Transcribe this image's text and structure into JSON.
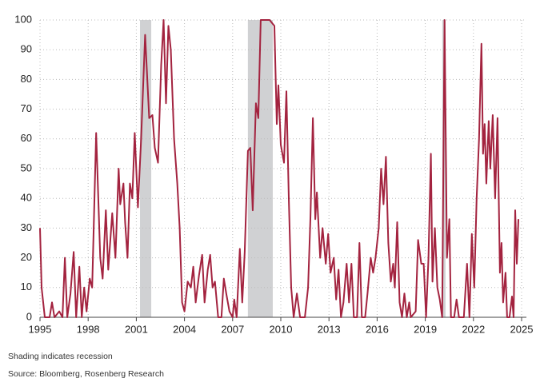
{
  "chart_data": {
    "type": "line",
    "note": "Shading indicates recession",
    "source": "Source: Bloomberg, Rosenberg Research",
    "color": "#a3233f",
    "recession_color": "#d0d1d3",
    "grid": true,
    "xlim": [
      1995,
      2025.3
    ],
    "ylim": [
      0,
      100
    ],
    "xticks": [
      1995,
      1998,
      2001,
      2004,
      2007,
      2010,
      2013,
      2016,
      2019,
      2022,
      2025
    ],
    "yticks": [
      0,
      10,
      20,
      30,
      40,
      50,
      60,
      70,
      80,
      90,
      100
    ],
    "recessions": [
      [
        2001.23,
        2001.93
      ],
      [
        2007.95,
        2009.5
      ],
      [
        2020.06,
        2020.26
      ]
    ],
    "x": [
      1995.0,
      1995.1,
      1995.3,
      1995.6,
      1995.75,
      1995.9,
      1996.2,
      1996.4,
      1996.55,
      1996.7,
      1996.9,
      1997.1,
      1997.25,
      1997.45,
      1997.6,
      1997.75,
      1997.9,
      1998.1,
      1998.25,
      1998.5,
      1998.75,
      1998.9,
      1999.1,
      1999.25,
      1999.5,
      1999.7,
      1999.9,
      2000.0,
      2000.2,
      2000.3,
      2000.45,
      2000.6,
      2000.75,
      2000.9,
      2001.1,
      2001.3,
      2001.55,
      2001.8,
      2002.0,
      2002.15,
      2002.35,
      2002.55,
      2002.7,
      2002.85,
      2003.0,
      2003.15,
      2003.35,
      2003.55,
      2003.7,
      2003.85,
      2004.0,
      2004.2,
      2004.4,
      2004.55,
      2004.7,
      2004.9,
      2005.1,
      2005.25,
      2005.45,
      2005.6,
      2005.75,
      2005.9,
      2006.1,
      2006.3,
      2006.45,
      2006.6,
      2006.8,
      2007.0,
      2007.1,
      2007.25,
      2007.45,
      2007.6,
      2007.75,
      2007.95,
      2008.1,
      2008.25,
      2008.45,
      2008.6,
      2008.75,
      2009.0,
      2009.3,
      2009.6,
      2009.75,
      2009.85,
      2010.0,
      2010.2,
      2010.35,
      2010.5,
      2010.65,
      2010.8,
      2011.0,
      2011.2,
      2011.5,
      2011.7,
      2011.85,
      2012.0,
      2012.15,
      2012.25,
      2012.45,
      2012.6,
      2012.8,
      2012.95,
      2013.1,
      2013.3,
      2013.45,
      2013.6,
      2013.75,
      2013.9,
      2014.1,
      2014.25,
      2014.4,
      2014.55,
      2014.75,
      2014.9,
      2015.05,
      2015.25,
      2015.4,
      2015.6,
      2015.75,
      2015.9,
      2016.1,
      2016.25,
      2016.4,
      2016.55,
      2016.7,
      2016.85,
      2017.0,
      2017.1,
      2017.25,
      2017.4,
      2017.55,
      2017.7,
      2017.85,
      2018.0,
      2018.1,
      2018.4,
      2018.55,
      2018.75,
      2018.9,
      2019.05,
      2019.2,
      2019.35,
      2019.45,
      2019.6,
      2019.75,
      2019.9,
      2020.05,
      2020.2,
      2020.35,
      2020.5,
      2020.6,
      2020.8,
      2020.95,
      2021.1,
      2021.4,
      2021.6,
      2021.75,
      2021.9,
      2022.05,
      2022.2,
      2022.35,
      2022.5,
      2022.6,
      2022.7,
      2022.8,
      2022.95,
      2023.05,
      2023.2,
      2023.35,
      2023.5,
      2023.65,
      2023.75,
      2023.85,
      2024.0,
      2024.1,
      2024.25,
      2024.4,
      2024.5,
      2024.6,
      2024.7,
      2024.8
    ],
    "values": [
      30,
      10,
      0,
      0,
      5,
      0,
      2,
      0,
      20,
      0,
      8,
      22,
      0,
      17,
      0,
      10,
      2,
      13,
      10,
      62,
      20,
      13,
      36,
      16,
      35,
      20,
      50,
      38,
      45,
      32,
      20,
      45,
      40,
      62,
      37,
      60,
      95,
      67,
      68,
      57,
      52,
      85,
      100,
      72,
      98,
      90,
      60,
      45,
      30,
      5,
      2,
      12,
      10,
      17,
      5,
      14,
      21,
      5,
      16,
      21,
      10,
      12,
      0,
      0,
      13,
      8,
      2,
      0,
      6,
      0,
      23,
      5,
      22,
      56,
      57,
      36,
      72,
      67,
      100,
      100,
      100,
      98,
      65,
      78,
      58,
      52,
      76,
      40,
      10,
      0,
      8,
      0,
      0,
      10,
      34,
      67,
      33,
      42,
      20,
      30,
      18,
      28,
      15,
      20,
      6,
      16,
      0,
      5,
      18,
      5,
      18,
      0,
      0,
      25,
      0,
      0,
      8,
      20,
      15,
      20,
      30,
      50,
      38,
      54,
      25,
      12,
      18,
      10,
      32,
      5,
      0,
      8,
      0,
      5,
      0,
      2,
      26,
      18,
      18,
      0,
      20,
      55,
      12,
      30,
      10,
      6,
      0,
      100,
      20,
      33,
      0,
      0,
      6,
      0,
      0,
      18,
      0,
      28,
      10,
      40,
      60,
      92,
      55,
      65,
      45,
      66,
      50,
      68,
      40,
      67,
      15,
      25,
      5,
      15,
      0,
      0,
      7,
      0,
      36,
      18,
      33
    ]
  }
}
